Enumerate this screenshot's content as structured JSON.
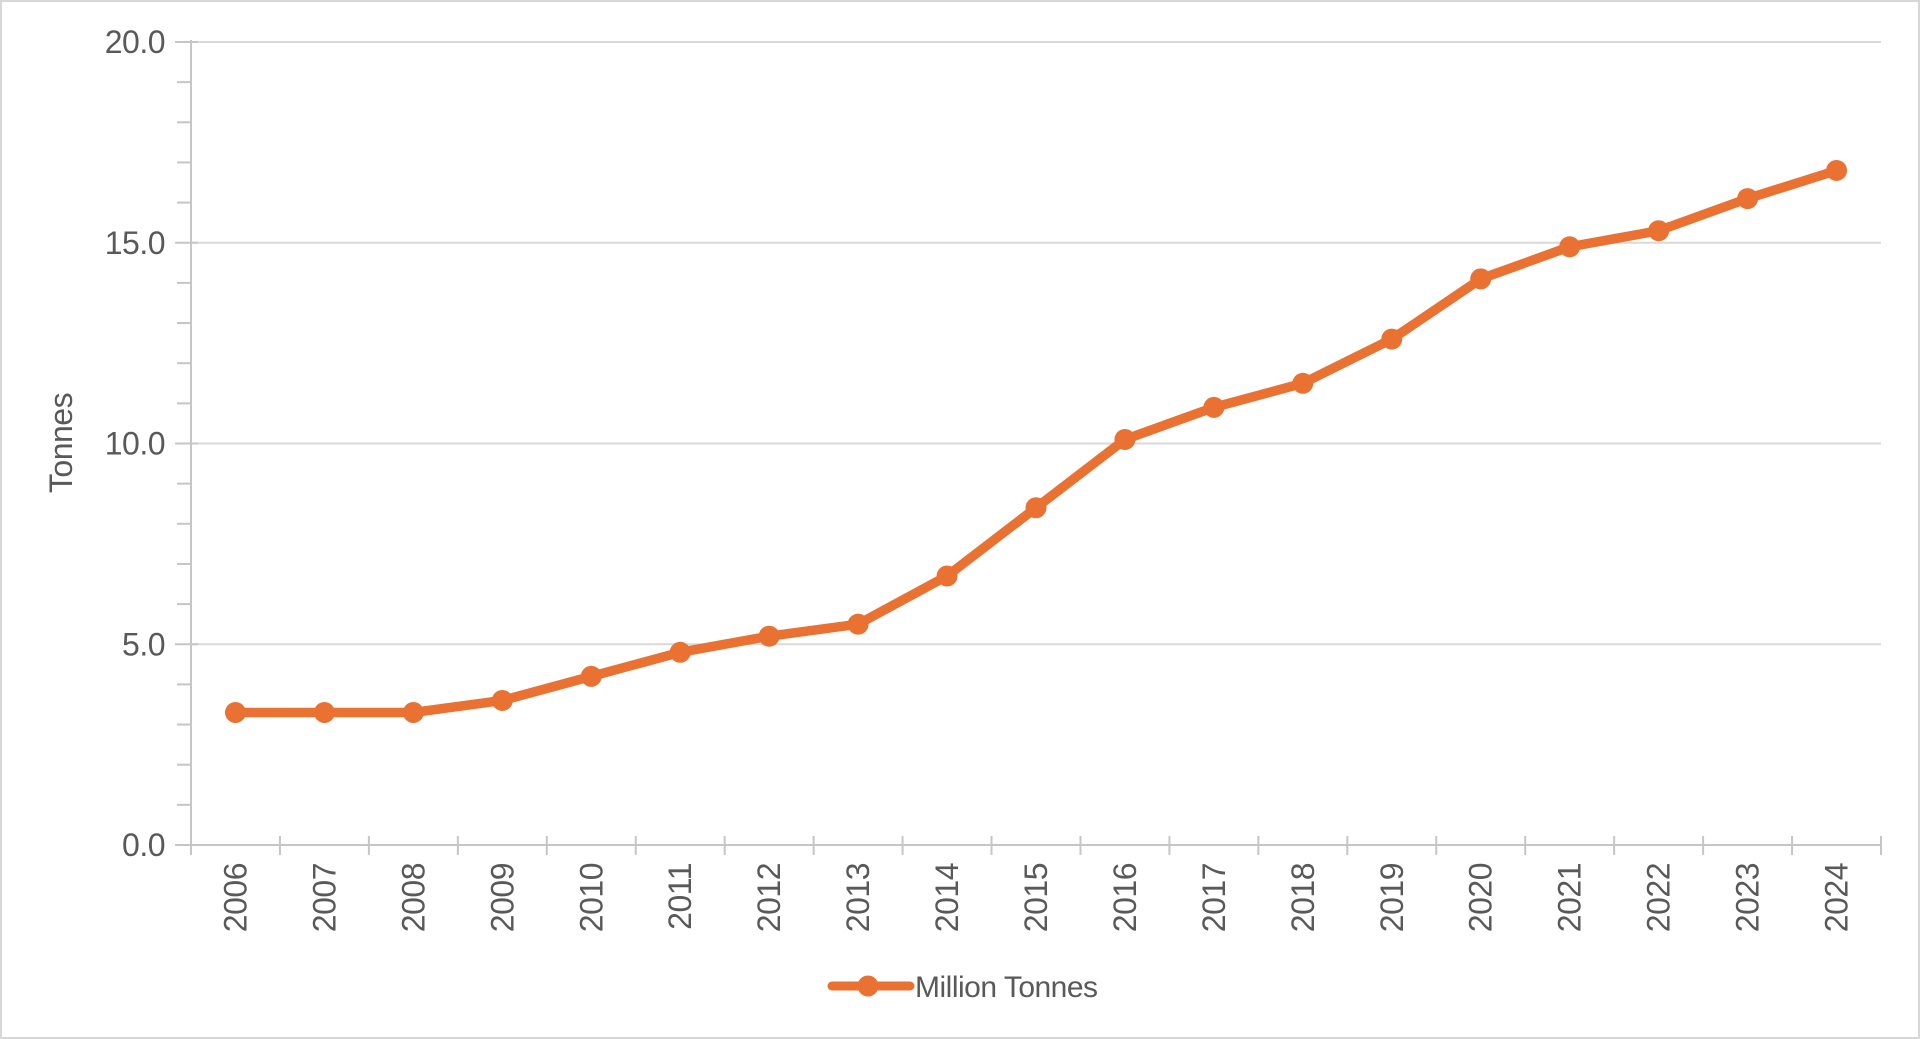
{
  "chart_data": {
    "type": "line",
    "title": "",
    "categories": [
      "2006",
      "2007",
      "2008",
      "2009",
      "2010",
      "2011",
      "2012",
      "2013",
      "2014",
      "2015",
      "2016",
      "2017",
      "2018",
      "2019",
      "2020",
      "2021",
      "2022",
      "2023",
      "2024"
    ],
    "series": [
      {
        "name": "Million Tonnes",
        "values": [
          3.3,
          3.3,
          3.3,
          3.6,
          4.2,
          4.8,
          5.2,
          5.5,
          6.7,
          8.4,
          10.1,
          10.9,
          11.5,
          12.6,
          14.1,
          14.9,
          15.3,
          16.1,
          16.8
        ]
      }
    ],
    "xlabel": "",
    "ylabel": "Tonnes",
    "ylim": [
      0,
      20
    ],
    "y_major_step": 5,
    "y_minor_step": 1,
    "y_tick_labels": [
      "0.0",
      "5.0",
      "10.0",
      "15.0",
      "20.0"
    ],
    "grid": "horizontal-major-only",
    "legend_position": "bottom-center",
    "legend_label": "Million Tonnes",
    "colors": {
      "series": "#E97132",
      "gridline": "#D9D9D9",
      "axis": "#C6C6C6",
      "text": "#595959",
      "background": "#FFFFFF",
      "frame_border": "#D7D7D7"
    }
  }
}
